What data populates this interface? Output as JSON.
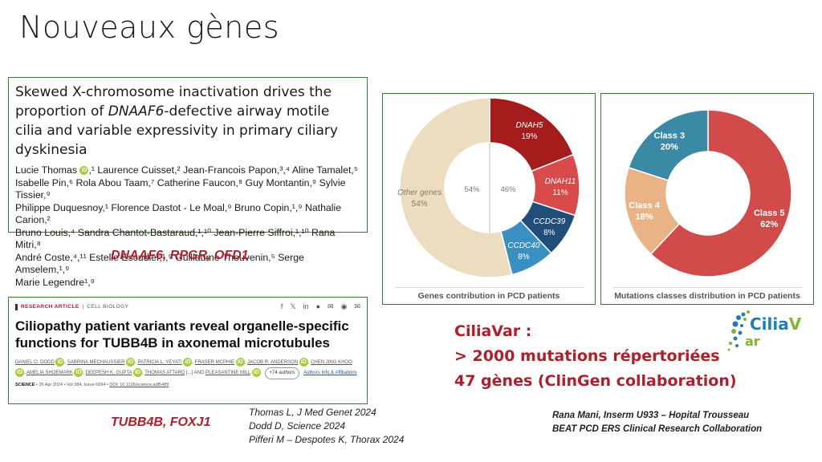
{
  "slide": {
    "title": "Nouveaux gènes"
  },
  "paper1": {
    "title_pre": "Skewed X-chromosome inactivation drives the proportion of ",
    "title_gene": "DNAAF6",
    "title_post": "-defective airway motile cilia and variable expressivity in primary ciliary dyskinesia",
    "authors_l1": "Lucie Thomas",
    "authors_l1b": ",¹ Laurence Cuisset,² Jean-Francois Papon,³,⁴ Aline Tamalet,⁵",
    "authors_l2": "Isabelle Pin,⁶ Rola Abou Taam,⁷ Catherine Faucon,⁸ Guy Montantin,⁹ Sylvie Tissier,⁹",
    "authors_l3": "Philippe Duquesnoy,¹ Florence Dastot - Le Moal,⁹ Bruno Copin,¹,⁹ Nathalie Carion,²",
    "authors_l4": "Bruno Louis,⁴ Sandra Chantot-Bastaraud,¹,¹⁰ Jean-Pierre Siffroi,¹,¹⁰ Rana Mitri,⁸",
    "authors_l5": "André Coste,⁴,¹¹ Estelle Escudier,¹,⁹ Guillaume Thouvenin,⁵ Serge Amselem,¹,⁹",
    "authors_l6": "Marie Legendre¹,⁹",
    "genes": "DNAAF6, RPGR, OFD1"
  },
  "paper2": {
    "tag_article": "RESEARCH ARTICLE",
    "tag_sep": "|",
    "tag_section": "CELL BIOLOGY",
    "share_icons": [
      "f",
      "𝕏",
      "in",
      "●",
      "✉",
      "◉",
      "✉"
    ],
    "title": "Ciliopathy patient variants reveal organelle-specific functions for TUBB4B in axonemal microtubules",
    "authors_a": "DANIEL O. DODD",
    "authors_b": "SABRINA MECHAUSSIER",
    "authors_c": "PATRICIA L. YEYATI",
    "authors_d": "FRASER MCPHIE",
    "authors_e": "JACOB R. ANDERSON",
    "authors_f": "CHEN JING KHOO",
    "authors_g": "AMELIA SHOEMARK",
    "authors_h": "DEEPESH K. GUPTA",
    "authors_i": "THOMAS ATTARD",
    "authors_j": "[...] AND",
    "authors_k": "PLEASANTINE MILL",
    "more_authors": "+74 authors",
    "info_link": "Authors Info & Affiliations",
    "journal": "SCIENCE",
    "issue": "• 26 Apr 2024 • Vol 384, Issue 6694 •",
    "doi": "DOI: 10.1126/science.adf5489",
    "genes": "TUBB4B, FOXJ1"
  },
  "references": {
    "r1": "Thomas L, J Med Genet 2024",
    "r2": "Dodd D, Science 2024",
    "r3": "Pifferi M – Despotes K, Thorax 2024"
  },
  "ciliavar": {
    "l1": "CiliaVar :",
    "l2": "> 2000 mutations répertoriées",
    "l3": "47 gènes (ClinGen collaboration)",
    "logo_a": "Cilia",
    "logo_v": "V",
    "logo_b": "ar"
  },
  "credits": {
    "c1": "Rana Mani, Inserm U933 – Hopital Trousseau",
    "c2": "BEAT PCD ERS Clinical Research Collaboration"
  },
  "chart_data": [
    {
      "type": "pie",
      "title": "Genes contribution in PCD patients",
      "inner_labels": [
        "54%",
        "46%"
      ],
      "slices": [
        {
          "label": "DNAH5",
          "value": 19,
          "display": "19%",
          "color": "#a51c1c"
        },
        {
          "label": "DNAH11",
          "value": 11,
          "display": "11%",
          "color": "#d94a4a"
        },
        {
          "label": "CCDC39",
          "value": 8,
          "display": "8%",
          "color": "#1f4e79"
        },
        {
          "label": "CCDC40",
          "value": 8,
          "display": "8%",
          "color": "#3a8fc0"
        },
        {
          "label": "Other genes",
          "value": 54,
          "display": "54%",
          "color": "#ecdcc0"
        }
      ]
    },
    {
      "type": "pie",
      "title": "Mutations classes distribution in PCD patients",
      "slices": [
        {
          "label": "Class 5",
          "value": 62,
          "display": "62%",
          "color": "#d14b4b"
        },
        {
          "label": "Class 4",
          "value": 18,
          "display": "18%",
          "color": "#e9b385"
        },
        {
          "label": "Class 3",
          "value": 20,
          "display": "20%",
          "color": "#3a8aa6"
        }
      ]
    }
  ]
}
